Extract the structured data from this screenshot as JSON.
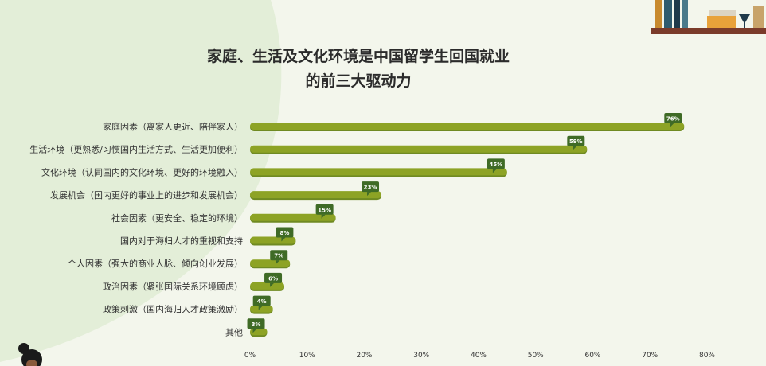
{
  "colors": {
    "background": "#f3f6ec",
    "panel": "#e3eed8",
    "bar": "#8da325",
    "bar_shadow": "#6f8a22",
    "label_bg": "#3f6b26"
  },
  "chart_data": {
    "type": "bar",
    "orientation": "horizontal",
    "title_lines": [
      "家庭、生活及文化环境是中国留学生回国就业",
      "的前三大驱动力"
    ],
    "categories": [
      "家庭因素（离家人更近、陪伴家人）",
      "生活环境（更熟悉/习惯国内生活方式、生活更加便利）",
      "文化环境（认同国内的文化环境、更好的环境融入）",
      "发展机会（国内更好的事业上的进步和发展机会）",
      "社会因素（更安全、稳定的环境）",
      "国内对于海归人才的重视和支持",
      "个人因素（强大的商业人脉、倾向创业发展）",
      "政治因素（紧张国际关系环境顾虑）",
      "政策刺激（国内海归人才政策激励）",
      "其他"
    ],
    "values": [
      76,
      59,
      45,
      23,
      15,
      8,
      7,
      6,
      4,
      3
    ],
    "value_labels": [
      "76%",
      "59%",
      "45%",
      "23%",
      "15%",
      "8%",
      "7%",
      "6%",
      "4%",
      "3%"
    ],
    "xlim": [
      0,
      80
    ],
    "xticks": [
      "0%",
      "10%",
      "20%",
      "30%",
      "40%",
      "50%",
      "60%",
      "70%",
      "80%"
    ],
    "grid": false,
    "legend": "none"
  }
}
